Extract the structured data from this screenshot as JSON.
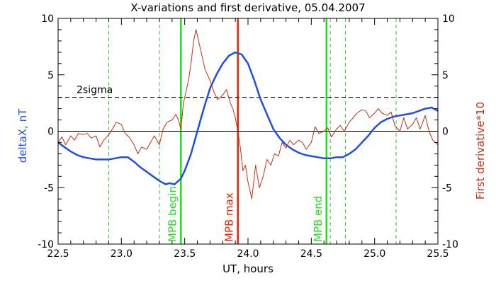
{
  "chart_data": {
    "type": "line",
    "title": "X-variations and first derivative, 05.04.2007",
    "xlabel": "UT, hours",
    "ylabel_left": "deltaX, nT",
    "ylabel_right": "First derivative*10",
    "xlim": [
      22.5,
      25.5
    ],
    "ylim_left": [
      -10,
      10
    ],
    "ylim_right": [
      -10,
      10
    ],
    "x_ticks": [
      "22.5",
      "23.0",
      "23.5",
      "24.0",
      "24.5",
      "25.0",
      "25.5"
    ],
    "y_ticks_left": [
      "-10",
      "-5",
      "0",
      "5",
      "10"
    ],
    "y_ticks_right": [
      "-10",
      "-5",
      "0",
      "5",
      "10"
    ],
    "grid": false,
    "colors": {
      "deltaX": "#1f4fe0",
      "derivative": "#c03010",
      "boundary": "#22dd22",
      "max": "#ee2200",
      "dashed_marker": "#22cc22",
      "threshold": "#000000"
    },
    "threshold": {
      "label": "2sigma",
      "value": 3
    },
    "zero_line": 0,
    "markers": [
      {
        "label": "MPB begin",
        "x": 23.47,
        "style": "solid",
        "color_key": "boundary"
      },
      {
        "label": "MPB max",
        "x": 23.92,
        "style": "solid",
        "color_key": "max"
      },
      {
        "label": "MPB end",
        "x": 24.62,
        "style": "solid",
        "color_key": "boundary"
      }
    ],
    "dashed_markers_x": [
      22.9,
      23.3,
      24.65,
      24.77,
      25.17
    ],
    "series": [
      {
        "name": "deltaX, nT",
        "axis": "left",
        "color_key": "deltaX",
        "x": [
          22.5,
          22.55,
          22.6,
          22.65,
          22.7,
          22.75,
          22.8,
          22.85,
          22.9,
          22.95,
          23.0,
          23.05,
          23.1,
          23.15,
          23.2,
          23.25,
          23.3,
          23.35,
          23.38,
          23.42,
          23.47,
          23.5,
          23.55,
          23.6,
          23.65,
          23.7,
          23.75,
          23.8,
          23.85,
          23.9,
          23.95,
          24.0,
          24.05,
          24.1,
          24.15,
          24.2,
          24.25,
          24.3,
          24.35,
          24.4,
          24.45,
          24.5,
          24.55,
          24.6,
          24.65,
          24.7,
          24.75,
          24.8,
          24.85,
          24.9,
          24.95,
          25.0,
          25.05,
          25.1,
          25.15,
          25.2,
          25.25,
          25.3,
          25.35,
          25.4,
          25.45,
          25.5
        ],
        "values": [
          -1.0,
          -1.4,
          -1.8,
          -2.1,
          -2.3,
          -2.4,
          -2.5,
          -2.5,
          -2.5,
          -2.4,
          -2.3,
          -2.3,
          -2.7,
          -3.2,
          -3.6,
          -4.0,
          -4.4,
          -4.7,
          -4.6,
          -4.7,
          -4.2,
          -3.5,
          -2.0,
          0.0,
          2.0,
          3.8,
          5.0,
          6.0,
          6.7,
          7.0,
          6.8,
          6.0,
          4.5,
          2.8,
          1.5,
          0.2,
          -0.6,
          -1.2,
          -1.6,
          -1.9,
          -2.1,
          -2.2,
          -2.3,
          -2.4,
          -2.4,
          -2.3,
          -2.3,
          -2.0,
          -1.6,
          -1.0,
          -0.4,
          0.3,
          0.8,
          1.1,
          1.3,
          1.4,
          1.5,
          1.6,
          1.8,
          2.0,
          2.1,
          1.8
        ]
      },
      {
        "name": "First derivative*10",
        "axis": "right",
        "color_key": "derivative",
        "x": [
          22.5,
          22.53,
          22.56,
          22.6,
          22.63,
          22.66,
          22.7,
          22.73,
          22.76,
          22.8,
          22.83,
          22.86,
          22.9,
          22.93,
          22.96,
          23.0,
          23.03,
          23.06,
          23.1,
          23.13,
          23.16,
          23.2,
          23.23,
          23.26,
          23.3,
          23.33,
          23.36,
          23.4,
          23.43,
          23.45,
          23.47,
          23.49,
          23.51,
          23.53,
          23.55,
          23.57,
          23.59,
          23.61,
          23.63,
          23.66,
          23.7,
          23.73,
          23.76,
          23.8,
          23.83,
          23.86,
          23.88,
          23.9,
          23.92,
          23.94,
          23.96,
          23.98,
          24.0,
          24.03,
          24.06,
          24.09,
          24.12,
          24.15,
          24.18,
          24.21,
          24.24,
          24.27,
          24.3,
          24.33,
          24.36,
          24.4,
          24.43,
          24.46,
          24.5,
          24.53,
          24.56,
          24.6,
          24.63,
          24.66,
          24.7,
          24.73,
          24.76,
          24.8,
          24.83,
          24.86,
          24.9,
          24.93,
          24.96,
          25.0,
          25.03,
          25.06,
          25.1,
          25.13,
          25.16,
          25.2,
          25.23,
          25.26,
          25.3,
          25.33,
          25.36,
          25.4,
          25.43,
          25.46,
          25.5
        ],
        "values": [
          -1.0,
          -0.5,
          -1.2,
          -0.4,
          -0.8,
          -0.2,
          -0.3,
          -0.2,
          -0.6,
          -0.4,
          -1.4,
          -0.8,
          -0.3,
          0.2,
          0.8,
          0.6,
          -0.2,
          -0.5,
          -1.2,
          -2.0,
          -1.4,
          -1.6,
          -1.0,
          -0.4,
          -1.2,
          0.2,
          0.8,
          1.0,
          1.5,
          1.0,
          0.2,
          2.5,
          3.5,
          4.5,
          6.0,
          8.0,
          9.0,
          8.0,
          7.0,
          5.5,
          4.5,
          3.5,
          2.8,
          3.2,
          3.7,
          2.5,
          2.0,
          1.2,
          0.0,
          -1.5,
          -3.5,
          -3.0,
          -4.5,
          -6.0,
          -3.0,
          -5.0,
          -4.0,
          -2.5,
          -3.0,
          -2.0,
          -2.2,
          -1.0,
          -1.5,
          -0.8,
          -1.2,
          -0.8,
          -1.0,
          -1.6,
          -1.0,
          0.4,
          -0.2,
          0.0,
          0.3,
          -0.5,
          0.2,
          0.5,
          0.0,
          0.8,
          1.2,
          1.6,
          1.9,
          1.8,
          1.2,
          1.6,
          2.0,
          1.6,
          1.4,
          1.7,
          0.5,
          0.0,
          1.2,
          0.2,
          0.6,
          1.2,
          0.2,
          1.4,
          0.0,
          -0.8,
          -1.2
        ]
      }
    ]
  }
}
